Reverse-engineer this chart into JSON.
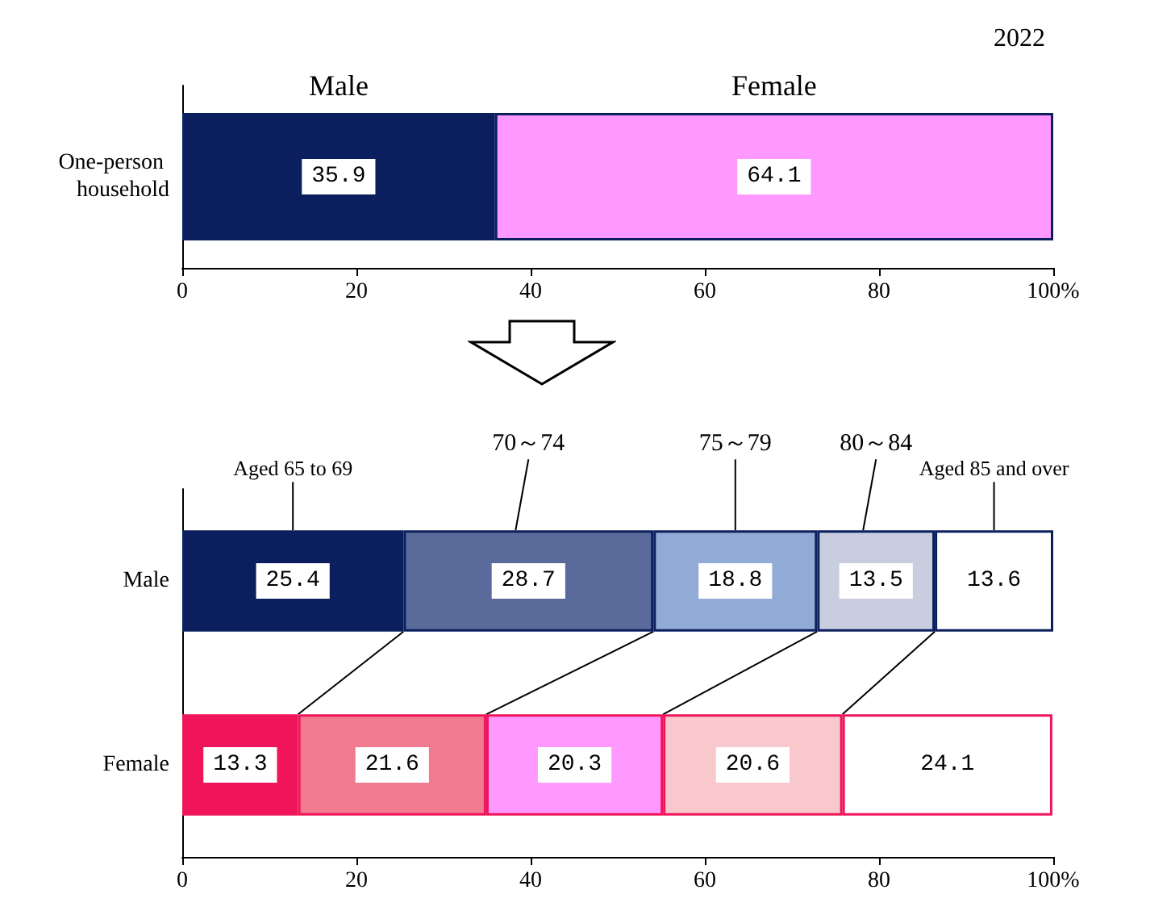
{
  "chart_data": [
    {
      "type": "bar",
      "orientation": "horizontal",
      "stacked": true,
      "categories": [
        "One-person household"
      ],
      "annotations": [
        "2022"
      ],
      "legend": false,
      "grid": false,
      "data_labels": true,
      "xlim": [
        0,
        100
      ],
      "xticks": [
        0,
        20,
        40,
        60,
        80,
        {
          "value": 100,
          "label": "100%"
        }
      ],
      "series": [
        {
          "name": "Male",
          "color": "#0b1f5e",
          "values": [
            35.9
          ]
        },
        {
          "name": "Female",
          "color": "#ff99ff",
          "values": [
            64.1
          ]
        }
      ]
    },
    {
      "type": "bar",
      "orientation": "horizontal",
      "stacked": true,
      "categories": [
        "Male",
        "Female"
      ],
      "legend": false,
      "grid": false,
      "data_labels": true,
      "xlim": [
        0,
        100
      ],
      "xticks": [
        0,
        20,
        40,
        60,
        80,
        {
          "value": 100,
          "label": "100%"
        }
      ],
      "series": [
        {
          "name": "Aged 65 to 69",
          "colors": [
            "#0b1f5e",
            "#f0145a"
          ],
          "values": [
            25.4,
            13.3
          ]
        },
        {
          "name": "70～74",
          "colors": [
            "#5a6a9a",
            "#f07a90"
          ],
          "values": [
            28.7,
            21.6
          ]
        },
        {
          "name": "75～79",
          "colors": [
            "#92aad6",
            "#ff99ff"
          ],
          "values": [
            18.8,
            20.3
          ]
        },
        {
          "name": "80～84",
          "colors": [
            "#c8cde0",
            "#f8c8cc"
          ],
          "values": [
            13.5,
            20.6
          ]
        },
        {
          "name": "Aged 85 and over",
          "colors": [
            "#ffffff",
            "#ffffff"
          ],
          "values": [
            13.6,
            24.1
          ]
        }
      ]
    }
  ]
}
